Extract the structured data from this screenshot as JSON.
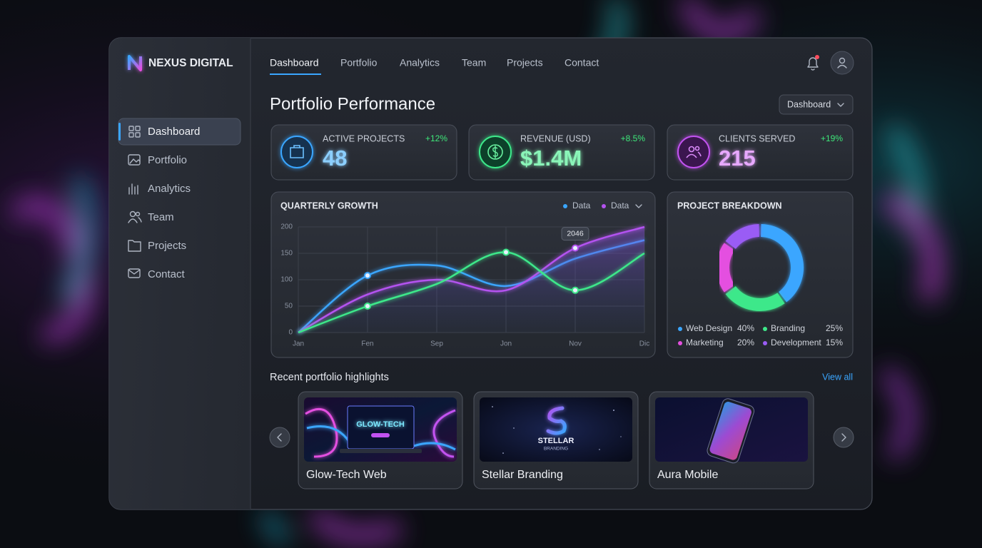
{
  "brand": "NEXUS DIGITAL",
  "sidebar": {
    "items": [
      "Dashboard",
      "Portfolio",
      "Analytics",
      "Team",
      "Projects",
      "Contact"
    ]
  },
  "topnav": {
    "items": [
      "Dashboard",
      "Portfolio",
      "Analytics",
      "Team",
      "Projects",
      "Contact"
    ]
  },
  "page_title": "Portfolio Performance",
  "view_select": "Dashboard",
  "stats": [
    {
      "label": "ACTIVE PROJECTS",
      "value": "48",
      "change": "+12%"
    },
    {
      "label": "REVENUE (USD)",
      "value": "$1.4M",
      "change": "+8.5%"
    },
    {
      "label": "CLIENTS SERVED",
      "value": "215",
      "change": "+19%"
    }
  ],
  "chart_data": [
    {
      "type": "line",
      "title": "QUARTERLY GROWTH",
      "categories": [
        "Jan",
        "Fen",
        "Sep",
        "Jon",
        "Nov",
        "Dic"
      ],
      "series": [
        {
          "name": "Data",
          "color": "#3aa6ff",
          "values": [
            0,
            108,
            127,
            88,
            140,
            175
          ]
        },
        {
          "name": "Data",
          "color": "#b452f0",
          "values": [
            0,
            72,
            100,
            80,
            160,
            200
          ]
        },
        {
          "color": "#3ee88a",
          "values": [
            0,
            50,
            92,
            152,
            80,
            150
          ]
        }
      ],
      "annotation": "2046",
      "ylim": [
        0,
        200
      ],
      "yticks": [
        0,
        50,
        100,
        150,
        200
      ],
      "grid": true
    },
    {
      "type": "pie",
      "title": "PROJECT BREAKDOWN",
      "categories": [
        "Web Design",
        "Branding",
        "Marketing",
        "Development"
      ],
      "values": [
        40,
        25,
        20,
        15
      ],
      "value_labels": [
        "40%",
        "25%",
        "20%",
        "15%"
      ],
      "colors": [
        "#3aa6ff",
        "#3ee88a",
        "#e44fe0",
        "#9a5cf5"
      ]
    }
  ],
  "highlights": {
    "title": "Recent portfolio highlights",
    "view_all": "View all",
    "cards": [
      {
        "title": "Glow-Tech Web",
        "image_text": "GLOW-TECH"
      },
      {
        "title": "Stellar Branding",
        "image_text": "STELLAR",
        "image_subtext": "BRANDING"
      },
      {
        "title": "Aura Mobile"
      }
    ]
  }
}
